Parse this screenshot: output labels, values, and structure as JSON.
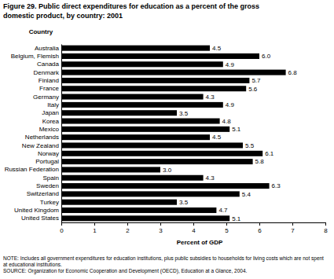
{
  "chart_data": {
    "type": "bar",
    "orientation": "horizontal",
    "title": "Figure 29.  Public direct expenditures for education as a percent of the gross domestic product, by country:  2001",
    "y_label": "Country",
    "x_label": "Percent of GDP",
    "categories": [
      "Australia",
      "Belgium, Flemish",
      "Canada",
      "Denmark",
      "Finland",
      "France",
      "Germany",
      "Italy",
      "Japan",
      "Korea",
      "Mexico",
      "Netherlands",
      "New Zealand",
      "Norway",
      "Portugal",
      "Russian Federation",
      "Spain",
      "Sweden",
      "Switzerland",
      "Turkey",
      "United Kingdom",
      "United States"
    ],
    "values": [
      4.5,
      6.0,
      4.9,
      6.8,
      5.7,
      5.6,
      4.3,
      4.9,
      3.5,
      4.8,
      5.1,
      4.5,
      5.5,
      6.1,
      5.8,
      3.0,
      4.3,
      6.3,
      5.4,
      3.5,
      4.7,
      5.1
    ],
    "value_labels": [
      "4.5",
      "6.0",
      "4.9",
      "6.8",
      "5.7",
      "5.6",
      "4.3",
      "4.9",
      "3.5",
      "4.8",
      "5.1",
      "4.5",
      "5.5",
      "6.1",
      "5.8",
      "3.0",
      "4.3",
      "6.3",
      "5.4",
      "3.5",
      "4.7",
      "5.1"
    ],
    "color": "#000000",
    "xlim": [
      0,
      8
    ],
    "xticks": [
      0,
      1,
      2,
      3,
      4,
      5,
      6,
      7,
      8
    ],
    "grid": false,
    "data_labels": true,
    "notes": [
      "NOTE: Includes all government expenditures for education institutions, plus public subsidies to households for living costs which are not spent at educational institutions.",
      "SOURCE: Organization for Economic Cooperation and Development (OECD), Education at a Glance, 2004."
    ]
  }
}
